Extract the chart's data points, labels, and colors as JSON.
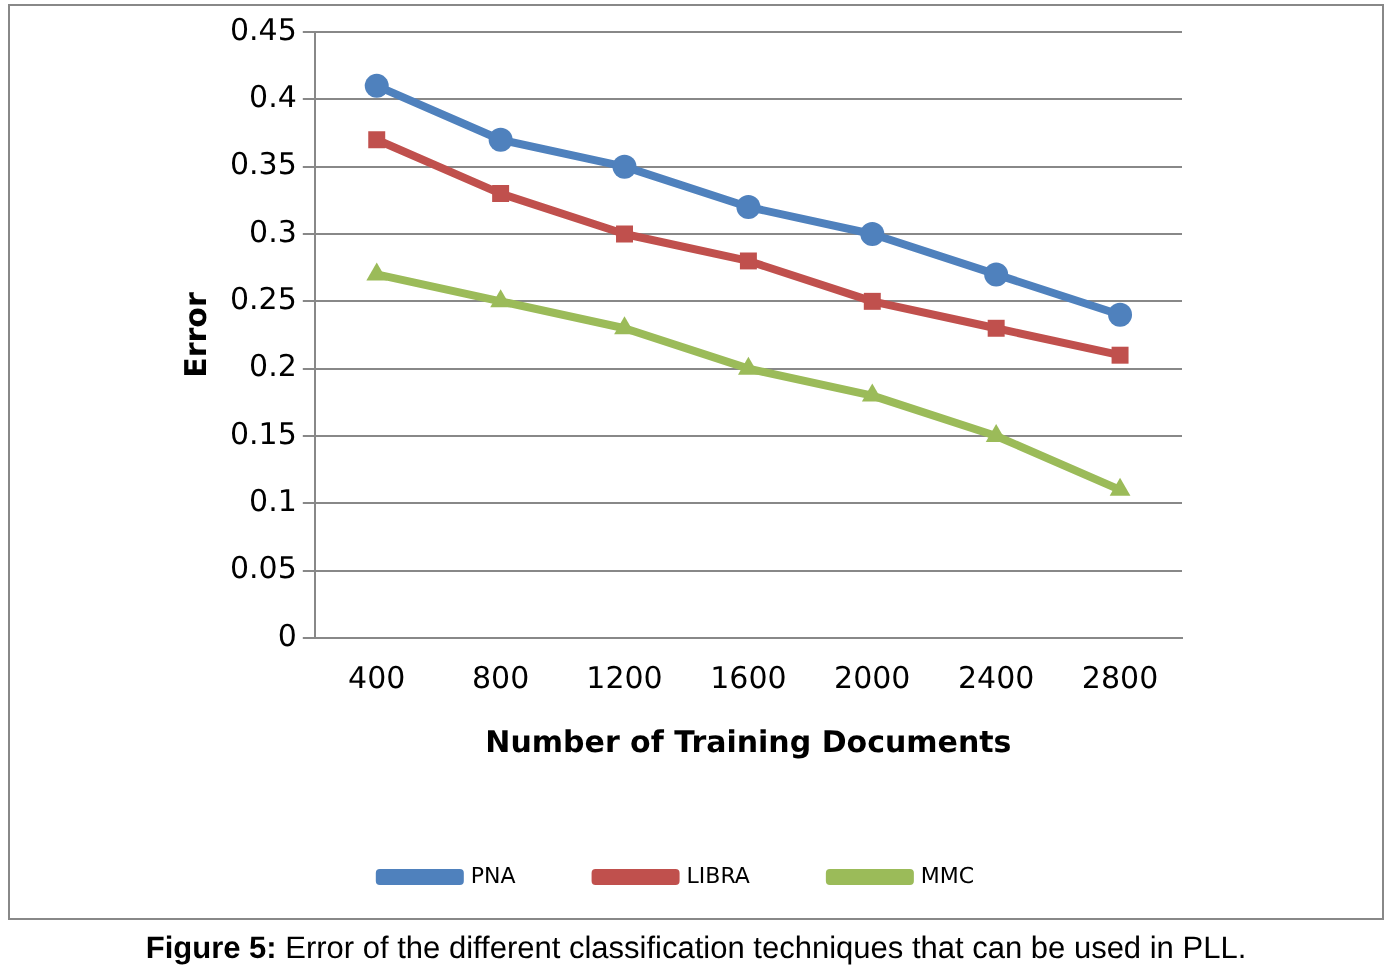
{
  "chart_data": {
    "type": "line",
    "xlabel": "Number of Training Documents",
    "ylabel": "Error",
    "categories": [
      "400",
      "800",
      "1200",
      "1600",
      "2000",
      "2400",
      "2800"
    ],
    "series": [
      {
        "name": "PNA",
        "color": "#4f81bd",
        "marker": "circle",
        "values": [
          0.41,
          0.37,
          0.35,
          0.32,
          0.3,
          0.27,
          0.24
        ]
      },
      {
        "name": "LIBRA",
        "color": "#c0504d",
        "marker": "square",
        "values": [
          0.37,
          0.33,
          0.3,
          0.28,
          0.25,
          0.23,
          0.21
        ]
      },
      {
        "name": "MMC",
        "color": "#9bbb59",
        "marker": "triangle",
        "values": [
          0.27,
          0.25,
          0.23,
          0.2,
          0.18,
          0.15,
          0.11
        ]
      }
    ],
    "ylim": [
      0,
      0.45
    ],
    "yticks": [
      0,
      0.05,
      0.1,
      0.15,
      0.2,
      0.25,
      0.3,
      0.35,
      0.4,
      0.45
    ],
    "grid": "y",
    "legend": "bottom",
    "annotations": [
      "Figure 5: Error of the different classification techniques that can be used in PLL."
    ]
  }
}
